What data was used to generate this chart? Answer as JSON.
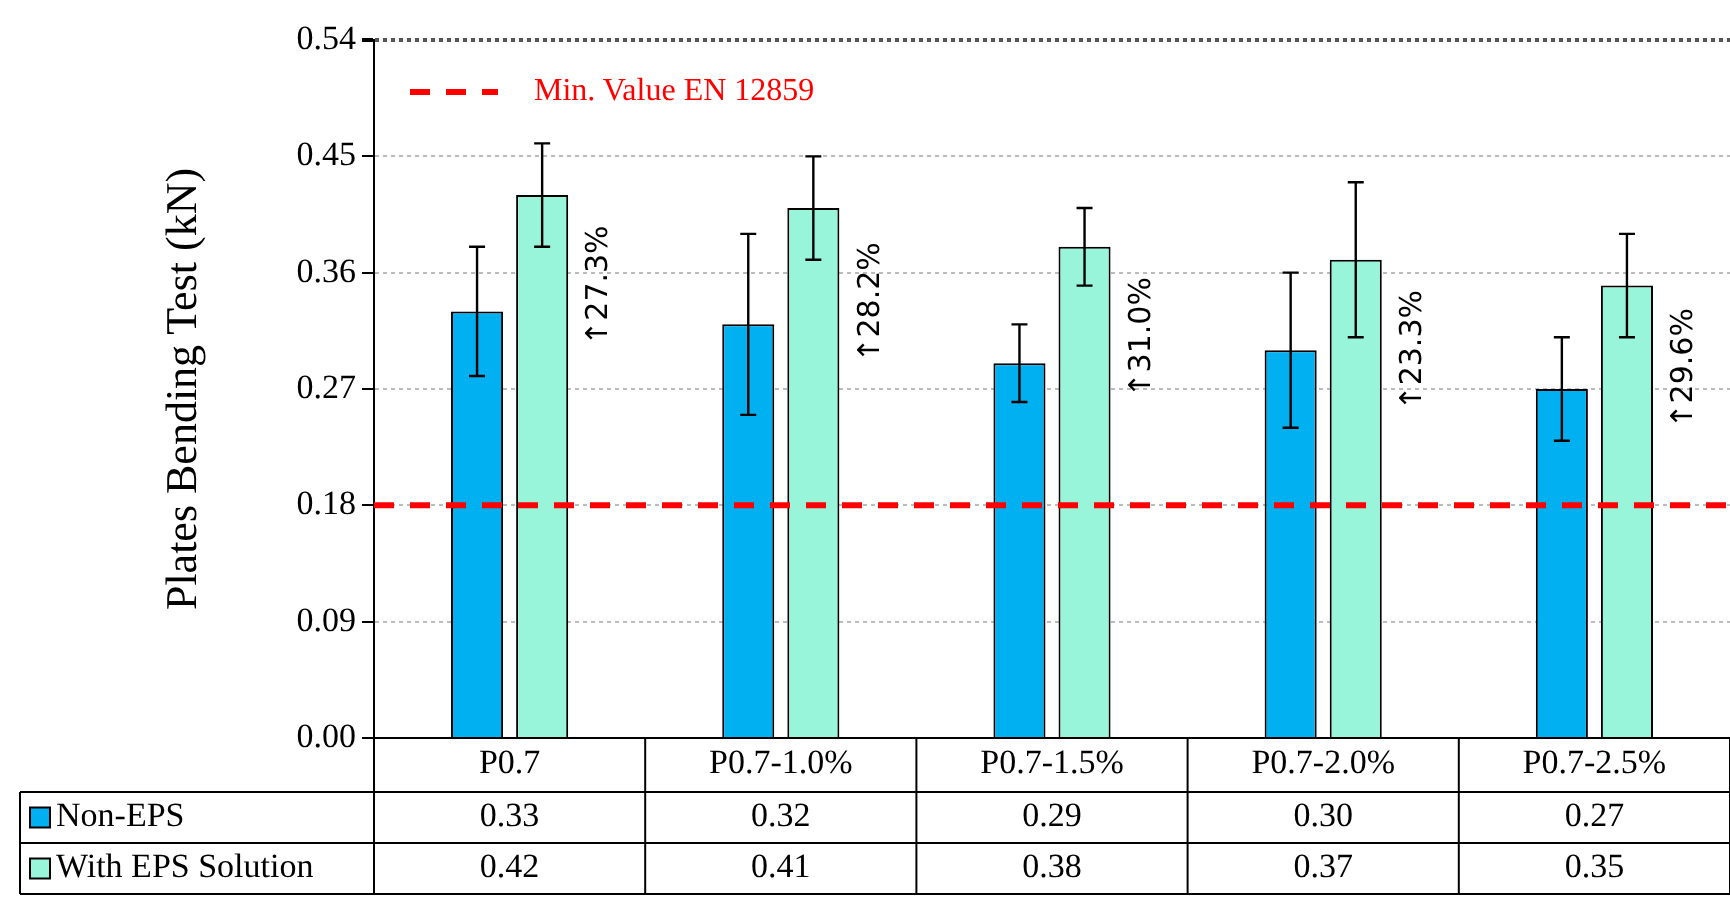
{
  "chart_data": {
    "type": "bar",
    "ylabel": "Plates Bending Test (kN)",
    "categories": [
      "P0.7",
      "P0.7-1.0%",
      "P0.7-1.5%",
      "P0.7-2.0%",
      "P0.7-2.5%"
    ],
    "series": [
      {
        "name": "Non-EPS",
        "color": "#00b0f0",
        "values": [
          0.33,
          0.32,
          0.29,
          0.3,
          0.27
        ],
        "value_labels": [
          "0.33",
          "0.32",
          "0.29",
          "0.30",
          "0.27"
        ],
        "errors": [
          0.05,
          0.07,
          0.03,
          0.06,
          0.04
        ]
      },
      {
        "name": "With EPS Solution",
        "color": "#99f5d9",
        "values": [
          0.42,
          0.41,
          0.38,
          0.37,
          0.35
        ],
        "value_labels": [
          "0.42",
          "0.41",
          "0.38",
          "0.37",
          "0.35"
        ],
        "errors": [
          0.04,
          0.04,
          0.03,
          0.06,
          0.04
        ]
      }
    ],
    "ylim": [
      0,
      0.54
    ],
    "yticks": [
      {
        "value": 0,
        "label": "0.00"
      },
      {
        "value": 0.09,
        "label": "0.09"
      },
      {
        "value": 0.18,
        "label": "0.18"
      },
      {
        "value": 0.27,
        "label": "0.27"
      },
      {
        "value": 0.36,
        "label": "0.36"
      },
      {
        "value": 0.45,
        "label": "0.45"
      },
      {
        "value": 0.54,
        "label": "0.54"
      }
    ],
    "grid": "y",
    "legend": "bottom",
    "ref_lines": [
      {
        "axis": "y",
        "value": 0.18,
        "label": "Min. Value EN 12859",
        "color": "#ff0000",
        "line_style": "dashed"
      }
    ],
    "annotations": [
      {
        "text": "↑27.3%",
        "x": "P0.7",
        "y": 0.35
      },
      {
        "text": "↑28.2%",
        "x": "P0.7-1.0%",
        "y": 0.337
      },
      {
        "text": "↑31.0%",
        "x": "P0.7-1.5%",
        "y": 0.31
      },
      {
        "text": "↑23.3%",
        "x": "P0.7-2.0%",
        "y": 0.3
      },
      {
        "text": "↑29.6%",
        "x": "P0.7-2.5%",
        "y": 0.286
      }
    ]
  }
}
